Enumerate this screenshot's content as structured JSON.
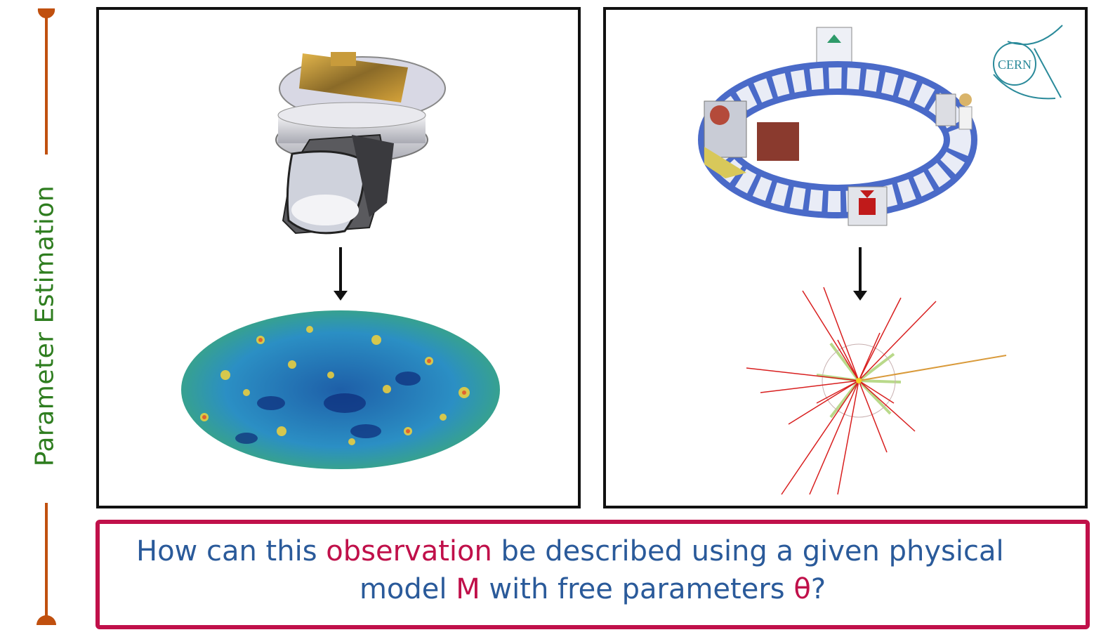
{
  "side_label": "Parameter Estimation",
  "logo_text": "CERN",
  "question": {
    "line1_part1": "How can this ",
    "line1_highlight": "observation",
    "line1_part2": " be described using a given  physical",
    "line2_part1": "model ",
    "line2_model_symbol": "M",
    "line2_part2": " with free parameters ",
    "line2_param_symbol": "θ",
    "line2_part3": "?"
  },
  "colors": {
    "label_green": "#2e7d1f",
    "timeline_orange": "#c0500f",
    "box_crimson": "#c0104a",
    "text_blue": "#2a5a9a",
    "logo_teal": "#2a8a9a"
  }
}
